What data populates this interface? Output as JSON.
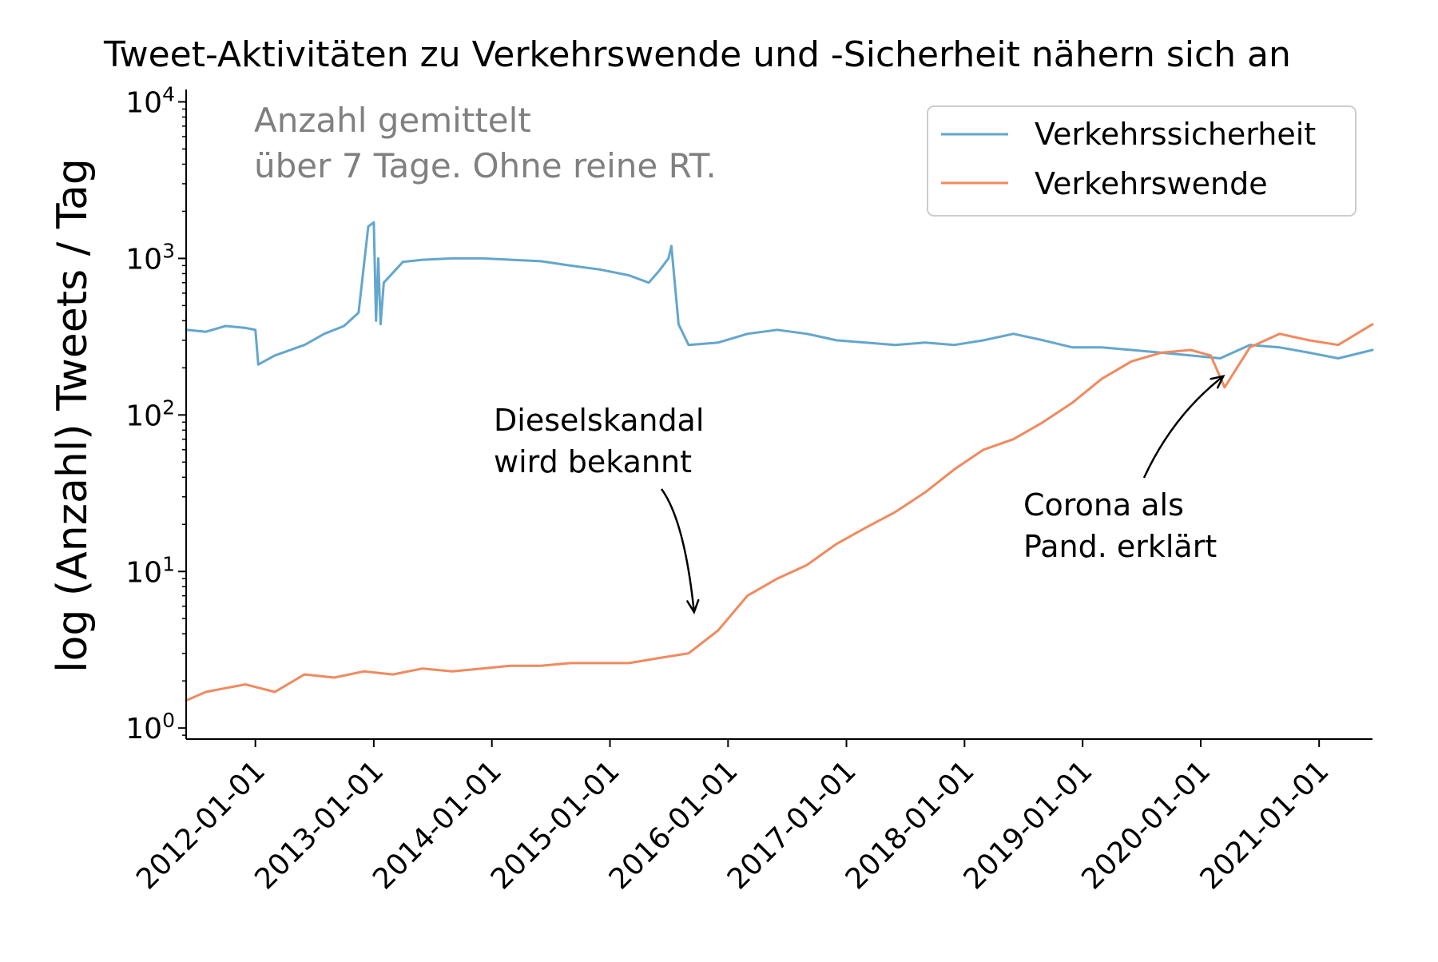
{
  "chart_data": {
    "type": "line",
    "title": "Tweet-Aktivitäten zu Verkehrswende und -Sicherheit nähern sich an",
    "ylabel": "log (Anzahl) Tweets / Tag",
    "xlabel": "",
    "yscale": "log",
    "ylim": [
      0.85,
      12000
    ],
    "xlim": [
      "2011-06-01",
      "2021-06-15"
    ],
    "x_ticks": [
      "2012-01-01",
      "2013-01-01",
      "2014-01-01",
      "2015-01-01",
      "2016-01-01",
      "2017-01-01",
      "2018-01-01",
      "2019-01-01",
      "2020-01-01",
      "2021-01-01"
    ],
    "y_ticks": [
      1,
      10,
      100,
      1000,
      10000
    ],
    "y_tick_labels": [
      {
        "base": "10",
        "exp": "0"
      },
      {
        "base": "10",
        "exp": "1"
      },
      {
        "base": "10",
        "exp": "2"
      },
      {
        "base": "10",
        "exp": "3"
      },
      {
        "base": "10",
        "exp": "4"
      }
    ],
    "note": [
      "Anzahl gemittelt",
      "über 7 Tage. Ohne reine RT."
    ],
    "legend_position": "top-right",
    "grid": false,
    "series": [
      {
        "name": "Verkehrssicherheit",
        "color": "#64a6cd",
        "points": [
          [
            "2011-06-01",
            350
          ],
          [
            "2011-08-01",
            340
          ],
          [
            "2011-10-01",
            370
          ],
          [
            "2011-12-01",
            360
          ],
          [
            "2012-01-01",
            350
          ],
          [
            "2012-01-10",
            210
          ],
          [
            "2012-03-01",
            240
          ],
          [
            "2012-06-01",
            280
          ],
          [
            "2012-08-01",
            330
          ],
          [
            "2012-10-01",
            370
          ],
          [
            "2012-11-15",
            450
          ],
          [
            "2012-12-15",
            1600
          ],
          [
            "2013-01-01",
            1700
          ],
          [
            "2013-01-08",
            400
          ],
          [
            "2013-01-15",
            1000
          ],
          [
            "2013-01-22",
            380
          ],
          [
            "2013-02-01",
            700
          ],
          [
            "2013-04-01",
            950
          ],
          [
            "2013-06-01",
            980
          ],
          [
            "2013-09-01",
            1000
          ],
          [
            "2013-12-01",
            1000
          ],
          [
            "2014-03-01",
            980
          ],
          [
            "2014-06-01",
            960
          ],
          [
            "2014-09-01",
            900
          ],
          [
            "2014-12-01",
            850
          ],
          [
            "2015-03-01",
            780
          ],
          [
            "2015-05-01",
            700
          ],
          [
            "2015-06-01",
            830
          ],
          [
            "2015-07-01",
            1000
          ],
          [
            "2015-07-10",
            1200
          ],
          [
            "2015-08-01",
            380
          ],
          [
            "2015-09-01",
            280
          ],
          [
            "2015-12-01",
            290
          ],
          [
            "2016-03-01",
            330
          ],
          [
            "2016-06-01",
            350
          ],
          [
            "2016-09-01",
            330
          ],
          [
            "2016-12-01",
            300
          ],
          [
            "2017-03-01",
            290
          ],
          [
            "2017-06-01",
            280
          ],
          [
            "2017-09-01",
            290
          ],
          [
            "2017-12-01",
            280
          ],
          [
            "2018-03-01",
            300
          ],
          [
            "2018-06-01",
            330
          ],
          [
            "2018-09-01",
            300
          ],
          [
            "2018-12-01",
            270
          ],
          [
            "2019-03-01",
            270
          ],
          [
            "2019-06-01",
            260
          ],
          [
            "2019-09-01",
            250
          ],
          [
            "2019-12-01",
            240
          ],
          [
            "2020-03-01",
            230
          ],
          [
            "2020-06-01",
            280
          ],
          [
            "2020-09-01",
            270
          ],
          [
            "2020-12-01",
            250
          ],
          [
            "2021-03-01",
            230
          ],
          [
            "2021-06-15",
            260
          ]
        ]
      },
      {
        "name": "Verkehrswende",
        "color": "#f08a5e",
        "points": [
          [
            "2011-06-01",
            1.5
          ],
          [
            "2011-08-01",
            1.7
          ],
          [
            "2011-10-01",
            1.8
          ],
          [
            "2011-12-01",
            1.9
          ],
          [
            "2012-03-01",
            1.7
          ],
          [
            "2012-06-01",
            2.2
          ],
          [
            "2012-09-01",
            2.1
          ],
          [
            "2012-12-01",
            2.3
          ],
          [
            "2013-03-01",
            2.2
          ],
          [
            "2013-06-01",
            2.4
          ],
          [
            "2013-09-01",
            2.3
          ],
          [
            "2013-12-01",
            2.4
          ],
          [
            "2014-03-01",
            2.5
          ],
          [
            "2014-06-01",
            2.5
          ],
          [
            "2014-09-01",
            2.6
          ],
          [
            "2014-12-01",
            2.6
          ],
          [
            "2015-03-01",
            2.6
          ],
          [
            "2015-06-01",
            2.8
          ],
          [
            "2015-09-01",
            3.0
          ],
          [
            "2015-12-01",
            4.2
          ],
          [
            "2016-03-01",
            7.0
          ],
          [
            "2016-06-01",
            9.0
          ],
          [
            "2016-09-01",
            11.0
          ],
          [
            "2016-12-01",
            15.0
          ],
          [
            "2017-03-01",
            19.0
          ],
          [
            "2017-06-01",
            24.0
          ],
          [
            "2017-09-01",
            32.0
          ],
          [
            "2017-12-01",
            45.0
          ],
          [
            "2018-03-01",
            60.0
          ],
          [
            "2018-06-01",
            70.0
          ],
          [
            "2018-09-01",
            90.0
          ],
          [
            "2018-12-01",
            120.0
          ],
          [
            "2019-03-01",
            170.0
          ],
          [
            "2019-06-01",
            220.0
          ],
          [
            "2019-09-01",
            250.0
          ],
          [
            "2019-12-01",
            260.0
          ],
          [
            "2020-02-01",
            240.0
          ],
          [
            "2020-03-15",
            150.0
          ],
          [
            "2020-06-01",
            270.0
          ],
          [
            "2020-09-01",
            330.0
          ],
          [
            "2020-12-01",
            300.0
          ],
          [
            "2021-03-01",
            280.0
          ],
          [
            "2021-06-15",
            380.0
          ]
        ]
      }
    ],
    "annotations": [
      {
        "lines": [
          "Dieselskandal",
          "wird bekannt"
        ],
        "x": "2015-09-18",
        "y": 10.5
      },
      {
        "lines": [
          "Corona als",
          "Pand. erklärt"
        ],
        "x": "2020-03-11",
        "y": 150
      }
    ]
  }
}
